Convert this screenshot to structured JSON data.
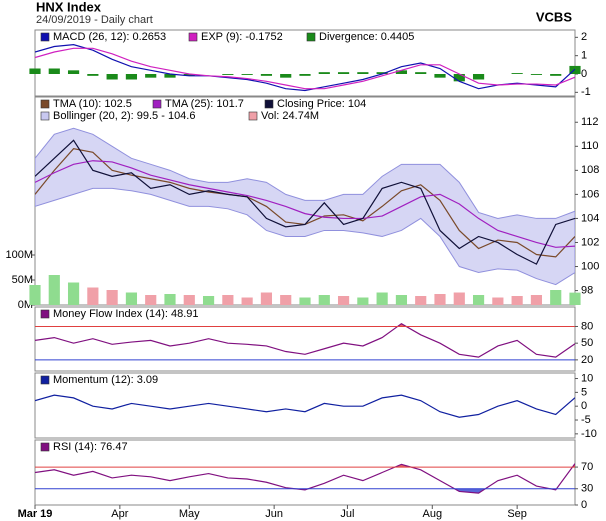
{
  "header": {
    "title": "HNX Index",
    "subtitle": "24/09/2019 - Daily chart",
    "source": "VCBS"
  },
  "chart_data": [
    {
      "type": "line",
      "x": [
        0,
        5,
        10,
        15,
        20,
        25,
        30,
        35,
        40,
        45,
        50,
        55,
        60,
        65,
        70,
        75,
        80,
        85,
        90,
        95,
        100,
        105,
        110,
        115,
        120,
        125,
        130,
        135,
        140
      ],
      "xlim": [
        0,
        140
      ],
      "ylim": [
        -1.2,
        2.4
      ],
      "yticks": [
        -1,
        0,
        1,
        2
      ],
      "series": [
        {
          "name": "MACD (26, 12): 0.2653",
          "style": "line",
          "color": "#1010b0",
          "values": [
            1.2,
            1.5,
            1.6,
            1.3,
            0.8,
            0.4,
            0.2,
            0,
            -0.1,
            -0.1,
            -0.2,
            -0.3,
            -0.5,
            -0.8,
            -0.9,
            -0.7,
            -0.5,
            -0.3,
            0,
            0.4,
            0.6,
            0.3,
            -0.4,
            -0.8,
            -0.6,
            -0.5,
            -0.6,
            -0.7,
            0.2653
          ]
        },
        {
          "name": "EXP (9): -0.1752",
          "style": "line",
          "color": "#d020c0",
          "values": [
            0.9,
            1.2,
            1.4,
            1.4,
            1.1,
            0.7,
            0.4,
            0.2,
            0,
            -0.1,
            -0.15,
            -0.25,
            -0.4,
            -0.6,
            -0.8,
            -0.8,
            -0.6,
            -0.4,
            -0.1,
            0.2,
            0.5,
            0.5,
            0,
            -0.5,
            -0.6,
            -0.55,
            -0.55,
            -0.6,
            -0.1752
          ]
        },
        {
          "name": "Divergence: 0.4405",
          "style": "bar",
          "color": "#1a8a1a",
          "values": [
            0.3,
            0.3,
            0.2,
            -0.1,
            -0.3,
            -0.3,
            -0.2,
            -0.2,
            -0.1,
            0,
            -0.05,
            -0.05,
            -0.1,
            -0.2,
            -0.1,
            0.1,
            0.1,
            0.1,
            0.1,
            0.2,
            0.1,
            -0.2,
            -0.4,
            -0.3,
            0,
            0.05,
            -0.05,
            -0.1,
            0.4405
          ]
        }
      ]
    },
    {
      "type": "line",
      "x": [
        0,
        5,
        10,
        15,
        20,
        25,
        30,
        35,
        40,
        45,
        50,
        55,
        60,
        65,
        70,
        75,
        80,
        85,
        90,
        95,
        100,
        105,
        110,
        115,
        120,
        125,
        130,
        135,
        140
      ],
      "xlim": [
        0,
        140
      ],
      "ylim": [
        96.8,
        114.1
      ],
      "yticks": [
        98,
        100,
        102,
        104,
        106,
        108,
        110,
        112
      ],
      "y2lim": [
        0,
        416
      ],
      "y2ticks": [
        {
          "value": 0,
          "label": "0M"
        },
        {
          "value": 50,
          "label": "50M"
        },
        {
          "value": 100,
          "label": "100M"
        }
      ],
      "series": [
        {
          "name": "TMA (10): 102.5",
          "style": "line",
          "color": "#7a4a2a",
          "values": [
            106,
            108,
            109.8,
            109.5,
            108,
            107.6,
            107.3,
            107,
            106.5,
            106.2,
            106,
            105.8,
            105,
            103.7,
            103.5,
            104.2,
            104.3,
            103.8,
            105,
            106.3,
            106.8,
            105.5,
            103,
            101.5,
            102.2,
            102,
            101,
            100.8,
            102.5
          ]
        },
        {
          "name": "TMA (25): 101.7",
          "style": "line",
          "color": "#a020c0",
          "values": [
            107,
            107.8,
            108.5,
            108.8,
            108.7,
            108.2,
            107.6,
            107.2,
            106.8,
            106.5,
            106.2,
            105.9,
            105.5,
            105,
            104.4,
            104.1,
            104,
            104,
            104.2,
            105,
            105.8,
            106,
            105.2,
            104,
            103,
            102.5,
            102,
            101.6,
            101.7
          ]
        },
        {
          "name": "Closing Price: 104",
          "style": "line",
          "color": "#101038",
          "values": [
            107.5,
            109,
            110.5,
            108,
            107.5,
            107.8,
            106.5,
            106.8,
            106,
            106.3,
            106,
            105.8,
            104,
            103.3,
            103.5,
            105.3,
            103.5,
            104,
            106.5,
            107,
            106.5,
            103,
            101.5,
            102.5,
            102,
            101,
            100.2,
            103.5,
            104
          ]
        },
        {
          "name": "Bollinger (20, 2): 99.5 - 104.6",
          "style": "band",
          "color": "#c8c8f0",
          "upper": [
            109,
            111,
            111.5,
            111,
            110,
            109,
            108.5,
            108,
            107.3,
            107,
            107,
            107.3,
            107,
            106,
            105.5,
            105.5,
            106,
            106,
            107.5,
            108.5,
            108.5,
            108.5,
            107,
            104.5,
            104,
            104.3,
            104,
            104,
            104.6
          ],
          "lower": [
            105,
            105.5,
            106,
            106.5,
            106.5,
            106.3,
            106,
            105.5,
            105,
            105,
            104.8,
            104.3,
            103,
            102.5,
            102.5,
            103,
            103,
            102.8,
            102.5,
            103,
            104,
            102.5,
            100,
            99.5,
            99.8,
            99.7,
            99,
            98.5,
            99.5
          ]
        },
        {
          "name": "Vol: 24.74M",
          "style": "bar",
          "axis": "y2",
          "color": "#f0a0a8",
          "colors": [
            "#8fdc8f",
            "#8fdc8f",
            "#8fdc8f",
            "#f0a0a8",
            "#f0a0a8",
            "#8fdc8f",
            "#f0a0a8",
            "#8fdc8f",
            "#f0a0a8",
            "#8fdc8f",
            "#f0a0a8",
            "#f0a0a8",
            "#f0a0a8",
            "#f0a0a8",
            "#8fdc8f",
            "#8fdc8f",
            "#f0a0a8",
            "#8fdc8f",
            "#8fdc8f",
            "#8fdc8f",
            "#f0a0a8",
            "#f0a0a8",
            "#f0a0a8",
            "#8fdc8f",
            "#f0a0a8",
            "#f0a0a8",
            "#f0a0a8",
            "#8fdc8f",
            "#8fdc8f"
          ],
          "values": [
            40,
            60,
            45,
            35,
            30,
            25,
            20,
            22,
            20,
            18,
            20,
            15,
            25,
            20,
            15,
            20,
            18,
            15,
            25,
            20,
            18,
            22,
            25,
            20,
            15,
            18,
            20,
            30,
            24.74
          ]
        }
      ]
    },
    {
      "type": "line",
      "x": [
        0,
        5,
        10,
        15,
        20,
        25,
        30,
        35,
        40,
        45,
        50,
        55,
        60,
        65,
        70,
        75,
        80,
        85,
        90,
        95,
        100,
        105,
        110,
        115,
        120,
        125,
        130,
        135,
        140
      ],
      "xlim": [
        0,
        140
      ],
      "ylim": [
        0,
        115
      ],
      "yticks": [
        20,
        50,
        80
      ],
      "levels": [
        {
          "value": 80,
          "color": "#e04040"
        },
        {
          "value": 20,
          "color": "#3040d0"
        }
      ],
      "series": [
        {
          "name": "Money Flow Index (14): 48.91",
          "style": "line",
          "color": "#801080",
          "values": [
            55,
            60,
            50,
            58,
            48,
            52,
            55,
            45,
            50,
            58,
            50,
            48,
            45,
            35,
            30,
            40,
            50,
            45,
            60,
            85,
            65,
            50,
            30,
            25,
            45,
            55,
            30,
            25,
            48.91
          ]
        }
      ]
    },
    {
      "type": "line",
      "x": [
        0,
        5,
        10,
        15,
        20,
        25,
        30,
        35,
        40,
        45,
        50,
        55,
        60,
        65,
        70,
        75,
        80,
        85,
        90,
        95,
        100,
        105,
        110,
        115,
        120,
        125,
        130,
        135,
        140
      ],
      "xlim": [
        0,
        140
      ],
      "ylim": [
        -11.5,
        12
      ],
      "yticks": [
        -10,
        -5,
        0,
        5,
        10
      ],
      "series": [
        {
          "name": "Momentum (12): 3.09",
          "style": "line",
          "color": "#1020a0",
          "values": [
            2,
            4,
            3,
            0,
            -1,
            1,
            0,
            -1,
            0,
            1,
            0,
            -1,
            -2,
            -1,
            -2,
            1,
            0,
            0,
            3,
            4,
            2,
            -2,
            -4,
            -3,
            0,
            2,
            -1,
            -3,
            3.09
          ]
        }
      ]
    },
    {
      "type": "line",
      "x": [
        0,
        5,
        10,
        15,
        20,
        25,
        30,
        35,
        40,
        45,
        50,
        55,
        60,
        65,
        70,
        75,
        80,
        85,
        90,
        95,
        100,
        105,
        110,
        115,
        120,
        125,
        130,
        135,
        140
      ],
      "xlim": [
        0,
        140
      ],
      "ylim": [
        0,
        120
      ],
      "yticks": [
        0,
        30,
        70
      ],
      "levels": [
        {
          "value": 70,
          "color": "#e04040"
        },
        {
          "value": 30,
          "color": "#3040d0"
        }
      ],
      "xticks": [
        {
          "value": 0,
          "label": "Mar 19"
        },
        {
          "value": 22,
          "label": "Apr"
        },
        {
          "value": 40,
          "label": "May"
        },
        {
          "value": 62,
          "label": "Jun"
        },
        {
          "value": 81,
          "label": "Jul"
        },
        {
          "value": 103,
          "label": "Aug"
        },
        {
          "value": 125,
          "label": "Sep"
        }
      ],
      "series": [
        {
          "name": "RSI (14): 76.47",
          "style": "line",
          "color": "#801080",
          "values": [
            60,
            65,
            55,
            62,
            50,
            55,
            52,
            45,
            52,
            58,
            50,
            48,
            42,
            32,
            28,
            40,
            55,
            45,
            60,
            75,
            65,
            45,
            25,
            22,
            45,
            55,
            35,
            28,
            76.47
          ]
        }
      ]
    }
  ]
}
